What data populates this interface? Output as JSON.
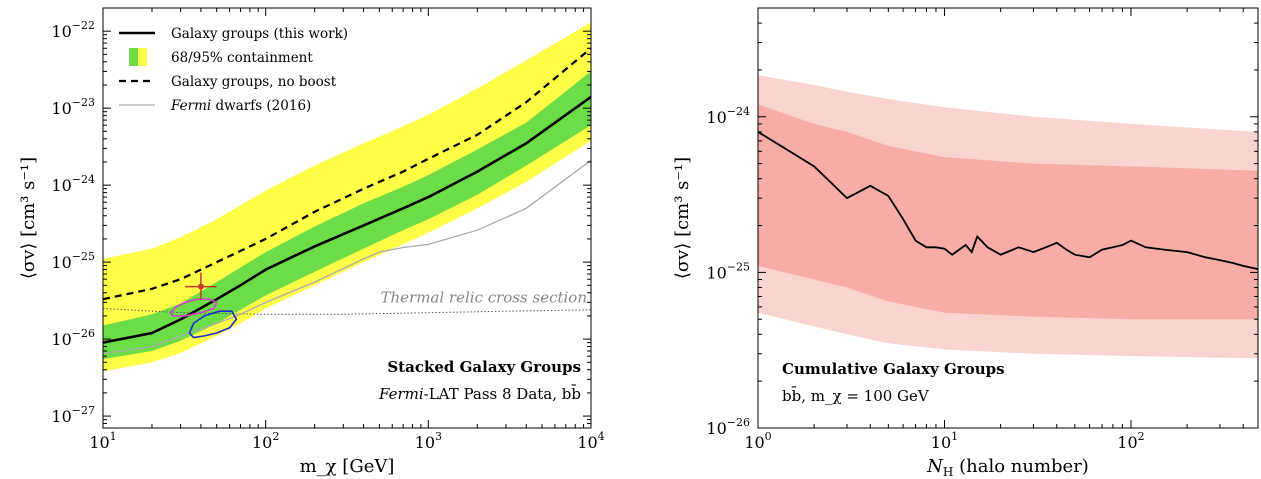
{
  "chart_data": [
    {
      "type": "line",
      "xlabel": "m_χ [GeV]",
      "ylabel": "⟨σv⟩ [cm³ s⁻¹]",
      "xscale": "log",
      "yscale": "log",
      "xlim": [
        10,
        10000
      ],
      "ylim": [
        7e-28,
        2e-22
      ],
      "x_ticks": [
        {
          "v": 10,
          "label": "10",
          "exp": "1"
        },
        {
          "v": 100,
          "label": "10",
          "exp": "2"
        },
        {
          "v": 1000,
          "label": "10",
          "exp": "3"
        },
        {
          "v": 10000,
          "label": "10",
          "exp": "4"
        }
      ],
      "y_ticks": [
        {
          "v": 1e-27,
          "label": "10",
          "exp": "−27"
        },
        {
          "v": 1e-26,
          "label": "10",
          "exp": "−26"
        },
        {
          "v": 1e-25,
          "label": "10",
          "exp": "−25"
        },
        {
          "v": 1e-24,
          "label": "10",
          "exp": "−24"
        },
        {
          "v": 1e-23,
          "label": "10",
          "exp": "−23"
        },
        {
          "v": 1e-22,
          "label": "10",
          "exp": "−22"
        }
      ],
      "legend_position": "top-left",
      "legend": [
        {
          "label": "Galaxy groups (this work)",
          "style": "solid-black"
        },
        {
          "label": "68/95% containment",
          "style": "band"
        },
        {
          "label": "Galaxy groups, no boost",
          "style": "dashed-black"
        },
        {
          "label_italic": "Fermi",
          "label": " dwarfs (2016)",
          "style": "gray"
        }
      ],
      "annotations": {
        "title": "Stacked Galaxy Groups",
        "subtitle_italic": "Fermi",
        "subtitle": "-LAT Pass 8 Data, bb̄",
        "relic": "Thermal relic cross section"
      },
      "colors": {
        "band95": "#ffff47",
        "band68": "#6ddd47",
        "gray": "#aaaaaa",
        "relic": "#888888",
        "point": "#c0392b",
        "magenta": "#d040c8",
        "blue": "#1a2ad0",
        "orange": "#e8a040"
      },
      "series": [
        {
          "name": "Galaxy groups (this work)",
          "x": [
            10,
            20,
            30,
            50,
            70,
            100,
            200,
            400,
            700,
            1000,
            2000,
            4000,
            10000
          ],
          "y": [
            9e-27,
            1.2e-26,
            1.8e-26,
            3.3e-26,
            5e-26,
            8e-26,
            1.6e-25,
            3e-25,
            5e-25,
            7e-25,
            1.5e-24,
            3.5e-24,
            1.4e-23
          ]
        },
        {
          "name": "Galaxy groups, no boost",
          "x": [
            10,
            20,
            30,
            50,
            70,
            100,
            200,
            400,
            700,
            1000,
            2000,
            4000,
            10000
          ],
          "y": [
            3.3e-26,
            4.5e-26,
            6e-26,
            1e-25,
            1.4e-25,
            2e-25,
            4.5e-25,
            9e-25,
            1.5e-24,
            2.2e-24,
            4.5e-24,
            1.2e-23,
            6e-23
          ]
        },
        {
          "name": "Fermi dwarfs (2016)",
          "x": [
            10,
            20,
            30,
            50,
            70,
            100,
            200,
            400,
            500,
            700,
            1000,
            2000,
            4000,
            10000
          ],
          "y": [
            6.5e-27,
            8e-27,
            1.1e-26,
            1.6e-26,
            2.1e-26,
            3e-26,
            5.5e-26,
            1.1e-25,
            1.35e-25,
            1.55e-25,
            1.7e-25,
            2.6e-25,
            5e-25,
            2.1e-24
          ]
        }
      ],
      "band68": {
        "x": [
          10,
          20,
          30,
          50,
          70,
          100,
          200,
          400,
          700,
          1000,
          2000,
          4000,
          10000
        ],
        "lo": [
          5.5e-27,
          7e-27,
          9.5e-27,
          1.6e-26,
          2.4e-26,
          3.7e-26,
          7.5e-26,
          1.5e-25,
          2.6e-25,
          3.6e-25,
          7.5e-25,
          1.8e-24,
          6e-24
        ],
        "hi": [
          1.5e-26,
          2.1e-26,
          2.9e-26,
          5.5e-26,
          8.5e-26,
          1.35e-25,
          2.9e-25,
          5.8e-25,
          9.5e-25,
          1.35e-24,
          2.9e-24,
          6.5e-24,
          3e-23
        ]
      },
      "band95": {
        "x": [
          10,
          20,
          30,
          50,
          70,
          100,
          200,
          400,
          700,
          1000,
          2000,
          4000,
          10000
        ],
        "lo": [
          3.8e-27,
          5e-27,
          6.6e-27,
          1.1e-26,
          1.6e-26,
          2.5e-26,
          5e-26,
          1e-25,
          1.7e-25,
          2.4e-25,
          5e-25,
          1.1e-24,
          3.8e-24
        ],
        "hi": [
          1.1e-25,
          1.5e-25,
          2.1e-25,
          3.6e-25,
          5.5e-25,
          8.5e-25,
          1.8e-24,
          3.5e-24,
          5.8e-24,
          8.2e-24,
          1.8e-23,
          4.2e-23,
          1.3e-22
        ]
      },
      "relic_line": {
        "x": [
          10,
          30,
          100,
          300,
          1000,
          3000,
          10000
        ],
        "y": [
          2.5e-26,
          2.2e-26,
          2.1e-26,
          2.1e-26,
          2.2e-26,
          2.3e-26,
          2.4e-26
        ]
      },
      "point": {
        "x": 40,
        "y": 4.8e-26,
        "xerr": [
          32,
          50
        ],
        "yerr": [
          3.2e-26,
          7.3e-26
        ]
      },
      "contour_magenta": {
        "x": [
          26,
          28,
          32,
          38,
          45,
          50,
          48,
          40,
          32,
          27,
          26
        ],
        "y": [
          2.2e-26,
          2.6e-26,
          3e-26,
          3.3e-26,
          3.3e-26,
          3e-26,
          2.5e-26,
          2.2e-26,
          2e-26,
          2e-26,
          2.2e-26
        ]
      },
      "contour_blue": {
        "x": [
          34,
          36,
          42,
          52,
          62,
          66,
          60,
          50,
          42,
          36,
          34
        ],
        "y": [
          1.2e-26,
          1.6e-26,
          2e-26,
          2.3e-26,
          2.3e-26,
          1.8e-26,
          1.4e-26,
          1.2e-26,
          1.1e-26,
          1.05e-26,
          1.2e-26
        ]
      }
    },
    {
      "type": "line",
      "xlabel_main": "N",
      "xlabel_sub": "H",
      "xlabel_rest": " (halo number)",
      "ylabel": "⟨σv⟩ [cm³ s⁻¹]",
      "xscale": "log",
      "yscale": "log",
      "xlim": [
        1,
        480
      ],
      "ylim": [
        1e-26,
        5e-24
      ],
      "x_ticks": [
        {
          "v": 1,
          "label": "10",
          "exp": "0"
        },
        {
          "v": 10,
          "label": "10",
          "exp": "1"
        },
        {
          "v": 100,
          "label": "10",
          "exp": "2"
        }
      ],
      "y_ticks": [
        {
          "v": 1e-26,
          "label": "10",
          "exp": "−26"
        },
        {
          "v": 1e-25,
          "label": "10",
          "exp": "−25"
        },
        {
          "v": 1e-24,
          "label": "10",
          "exp": "−24"
        }
      ],
      "annotations": {
        "title": "Cumulative Galaxy Groups",
        "subtitle": "bb̄, m_χ = 100 GeV"
      },
      "colors": {
        "outer": "#fad4d0",
        "inner": "#f7aca5",
        "line": "#000000"
      },
      "series": [
        {
          "name": "Cumulative limit",
          "x": [
            1,
            2,
            3,
            4,
            5,
            6,
            7,
            8,
            9,
            10,
            11,
            12,
            13,
            14,
            15,
            17,
            20,
            25,
            30,
            35,
            40,
            45,
            50,
            60,
            70,
            80,
            90,
            100,
            120,
            150,
            200,
            250,
            300,
            350,
            400,
            480
          ],
          "y": [
            8e-25,
            4.8e-25,
            3e-25,
            3.6e-25,
            3.1e-25,
            2.2e-25,
            1.6e-25,
            1.45e-25,
            1.45e-25,
            1.42e-25,
            1.3e-25,
            1.4e-25,
            1.5e-25,
            1.35e-25,
            1.7e-25,
            1.45e-25,
            1.3e-25,
            1.45e-25,
            1.35e-25,
            1.45e-25,
            1.55e-25,
            1.4e-25,
            1.3e-25,
            1.25e-25,
            1.4e-25,
            1.45e-25,
            1.5e-25,
            1.6e-25,
            1.45e-25,
            1.4e-25,
            1.35e-25,
            1.25e-25,
            1.2e-25,
            1.15e-25,
            1.1e-25,
            1.05e-25
          ]
        }
      ],
      "band_inner": {
        "x": [
          1,
          2,
          3,
          5,
          10,
          30,
          100,
          480
        ],
        "lo": [
          1.1e-25,
          9e-26,
          8e-26,
          6.5e-26,
          5.5e-26,
          5.2e-26,
          5e-26,
          5e-26
        ],
        "hi": [
          1.2e-24,
          9e-25,
          8e-25,
          6.5e-25,
          5.5e-25,
          5e-25,
          4.8e-25,
          4.5e-25
        ]
      },
      "band_outer": {
        "x": [
          1,
          2,
          3,
          5,
          10,
          30,
          100,
          480
        ],
        "lo": [
          5.5e-26,
          4.5e-26,
          4e-26,
          3.5e-26,
          3.2e-26,
          3e-26,
          2.9e-26,
          2.8e-26
        ],
        "hi": [
          1.85e-24,
          1.6e-24,
          1.45e-24,
          1.3e-24,
          1.15e-24,
          1e-24,
          9e-25,
          8e-25
        ]
      }
    }
  ]
}
